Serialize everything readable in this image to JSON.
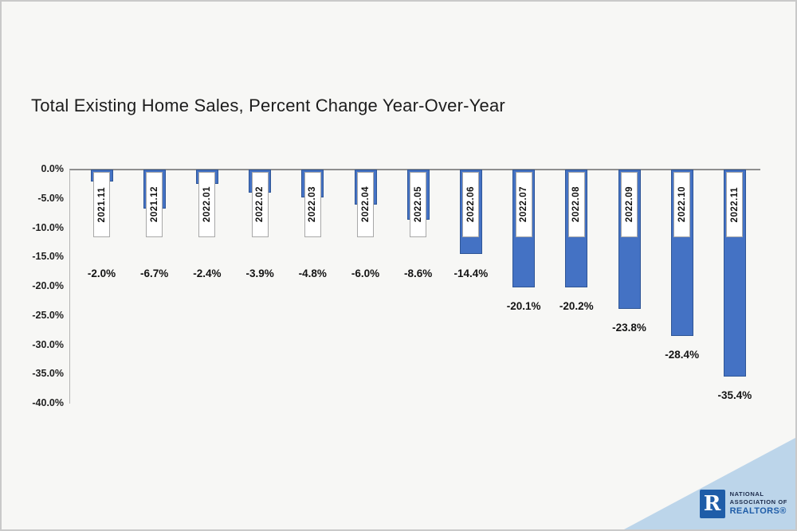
{
  "chart_data": {
    "type": "bar",
    "title": "Total Existing Home Sales, Percent Change Year-Over-Year",
    "categories": [
      "2021.11",
      "2021.12",
      "2022.01",
      "2022.02",
      "2022.03",
      "2022.04",
      "2022.05",
      "2022.06",
      "2022.07",
      "2022.08",
      "2022.09",
      "2022.10",
      "2022.11"
    ],
    "values": [
      -2.0,
      -6.7,
      -2.4,
      -3.9,
      -4.8,
      -6.0,
      -8.6,
      -14.4,
      -20.1,
      -20.2,
      -23.8,
      -28.4,
      -35.4
    ],
    "value_labels": [
      "-2.0%",
      "-6.7%",
      "-2.4%",
      "-3.9%",
      "-4.8%",
      "-6.0%",
      "-8.6%",
      "-14.4%",
      "-20.1%",
      "-20.2%",
      "-23.8%",
      "-28.4%",
      "-35.4%"
    ],
    "ytick_labels": [
      "0.0%",
      "-5.0%",
      "-10.0%",
      "-15.0%",
      "-20.0%",
      "-25.0%",
      "-30.0%",
      "-35.0%",
      "-40.0%"
    ],
    "ylim": [
      -40,
      0
    ],
    "grid": false,
    "legend": "none",
    "bar_color": "#4472c4",
    "bar_border_color": "#2e5596",
    "axis_color": "#8f8f8f"
  },
  "branding": {
    "logo_letter": "R",
    "line1": "NATIONAL",
    "line2": "ASSOCIATION OF",
    "line3": "REALTORS®",
    "triangle_color": "#bcd5ea",
    "logo_color": "#1f5da8"
  }
}
